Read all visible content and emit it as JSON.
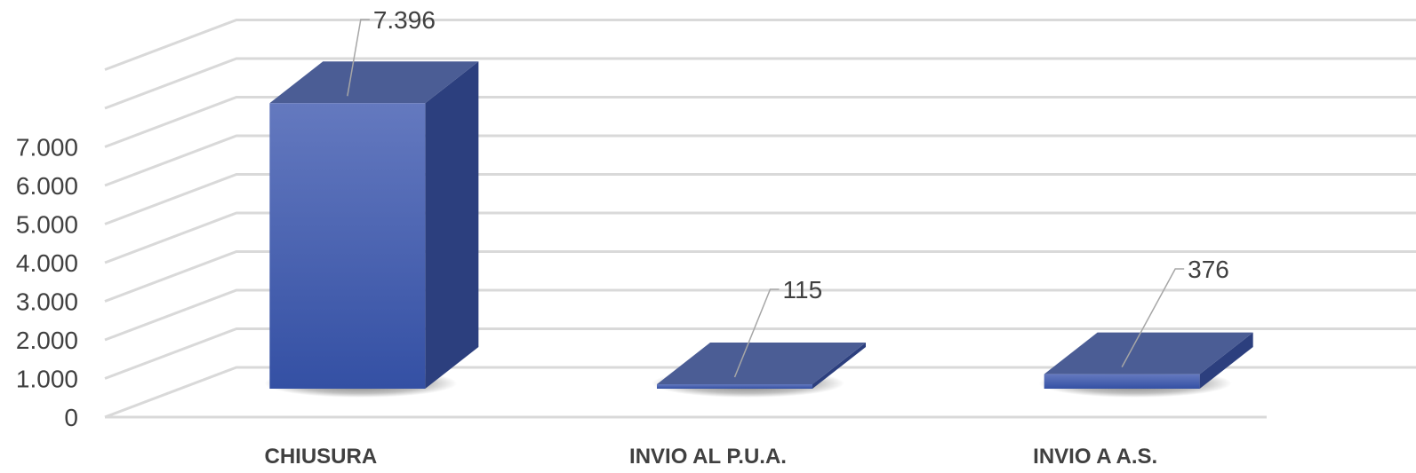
{
  "chart_data": {
    "type": "bar",
    "style": "3d-column",
    "categories": [
      "CHIUSURA",
      "INVIO AL P.U.A.",
      "INVIO A A.S."
    ],
    "values": [
      7396,
      115,
      376
    ],
    "value_labels": [
      "7.396",
      "115",
      "376"
    ],
    "y_ticks": [
      0,
      1000,
      2000,
      3000,
      4000,
      5000,
      6000,
      7000
    ],
    "y_tick_labels": [
      "0",
      "1.000",
      "2.000",
      "3.000",
      "4.000",
      "5.000",
      "6.000",
      "7.000"
    ],
    "ylim": [
      0,
      9000
    ],
    "grid": true,
    "legend": "none",
    "colors": {
      "front_top": "#6479bf",
      "front_bottom": "#3450a4",
      "top": "#4b5d95",
      "side": "#2c3f7e",
      "grid": "#d9d9d9",
      "leader": "#a6a6a6"
    }
  }
}
